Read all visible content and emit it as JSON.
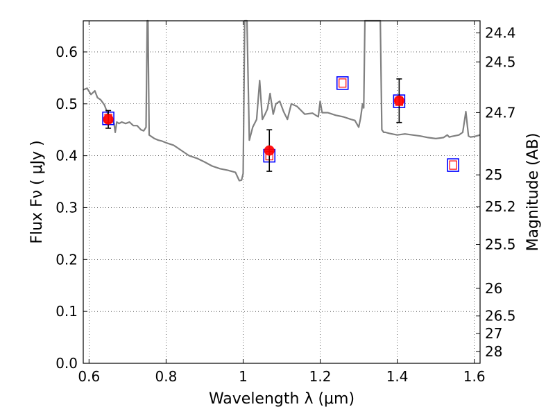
{
  "chart_data": {
    "type": "scatter",
    "xlabel": "Wavelength  λ (μm)",
    "ylabel": "Flux  Fν  ( μJy )",
    "ylabel_right": "Magnitude (AB)",
    "xlim": [
      0.585,
      1.615
    ],
    "ylim": [
      0.0,
      0.66
    ],
    "grid": true,
    "x_ticks": [
      {
        "value": 0.6,
        "label": "0.6"
      },
      {
        "value": 0.8,
        "label": "0.8"
      },
      {
        "value": 1.0,
        "label": "1"
      },
      {
        "value": 1.2,
        "label": "1.2"
      },
      {
        "value": 1.4,
        "label": "1.4"
      },
      {
        "value": 1.6,
        "label": "1.6"
      }
    ],
    "y_ticks": [
      {
        "value": 0.0,
        "label": "0.0"
      },
      {
        "value": 0.1,
        "label": "0.1"
      },
      {
        "value": 0.2,
        "label": "0.2"
      },
      {
        "value": 0.3,
        "label": "0.3"
      },
      {
        "value": 0.4,
        "label": "0.4"
      },
      {
        "value": 0.5,
        "label": "0.5"
      },
      {
        "value": 0.6,
        "label": "0.6"
      }
    ],
    "right_ticks": [
      {
        "flux": 0.6368,
        "label": "24.4"
      },
      {
        "flux": 0.5808,
        "label": "24.5"
      },
      {
        "flux": 0.4831,
        "label": "24.7"
      },
      {
        "flux": 0.3631,
        "label": "25"
      },
      {
        "flux": 0.3018,
        "label": "25.2"
      },
      {
        "flux": 0.2291,
        "label": "25.5"
      },
      {
        "flux": 0.1445,
        "label": "26"
      },
      {
        "flux": 0.0912,
        "label": "26.5"
      },
      {
        "flux": 0.0575,
        "label": "27"
      },
      {
        "flux": 0.0229,
        "label": "28"
      }
    ],
    "series": [
      {
        "kind": "line",
        "color": "#808080",
        "x": [
          0.585,
          0.595,
          0.605,
          0.615,
          0.622,
          0.63,
          0.64,
          0.65,
          0.66,
          0.665,
          0.668,
          0.672,
          0.678,
          0.685,
          0.695,
          0.705,
          0.715,
          0.725,
          0.735,
          0.742,
          0.748,
          0.751,
          0.753,
          0.756,
          0.76,
          0.77,
          0.78,
          0.79,
          0.8,
          0.82,
          0.84,
          0.86,
          0.88,
          0.9,
          0.92,
          0.94,
          0.96,
          0.97,
          0.98,
          0.985,
          0.99,
          0.996,
          1.0,
          1.004,
          1.01,
          1.016,
          1.025,
          1.035,
          1.043,
          1.05,
          1.057,
          1.063,
          1.07,
          1.078,
          1.085,
          1.095,
          1.105,
          1.115,
          1.125,
          1.14,
          1.16,
          1.18,
          1.195,
          1.2,
          1.205,
          1.22,
          1.24,
          1.26,
          1.28,
          1.29,
          1.3,
          1.305,
          1.31,
          1.313,
          1.316,
          1.32,
          1.34,
          1.356,
          1.36,
          1.365,
          1.37,
          1.38,
          1.4,
          1.42,
          1.44,
          1.46,
          1.48,
          1.5,
          1.52,
          1.53,
          1.535,
          1.54,
          1.56,
          1.57,
          1.578,
          1.585,
          1.59,
          1.6,
          1.615
        ],
        "values": [
          0.527,
          0.53,
          0.518,
          0.525,
          0.512,
          0.508,
          0.498,
          0.478,
          0.468,
          0.462,
          0.445,
          0.465,
          0.462,
          0.465,
          0.462,
          0.465,
          0.458,
          0.458,
          0.45,
          0.448,
          0.455,
          0.66,
          0.66,
          0.44,
          0.438,
          0.433,
          0.43,
          0.428,
          0.425,
          0.42,
          0.41,
          0.4,
          0.395,
          0.388,
          0.38,
          0.375,
          0.372,
          0.37,
          0.368,
          0.36,
          0.352,
          0.353,
          0.366,
          0.66,
          0.66,
          0.43,
          0.455,
          0.47,
          0.545,
          0.47,
          0.48,
          0.49,
          0.52,
          0.48,
          0.5,
          0.505,
          0.485,
          0.47,
          0.5,
          0.495,
          0.48,
          0.482,
          0.475,
          0.505,
          0.483,
          0.483,
          0.478,
          0.475,
          0.47,
          0.468,
          0.455,
          0.473,
          0.5,
          0.492,
          0.66,
          0.66,
          0.66,
          0.66,
          0.45,
          0.445,
          0.445,
          0.443,
          0.44,
          0.442,
          0.44,
          0.438,
          0.435,
          0.433,
          0.435,
          0.44,
          0.436,
          0.437,
          0.44,
          0.445,
          0.485,
          0.438,
          0.436,
          0.437,
          0.44
        ]
      },
      {
        "kind": "model_squares",
        "x": [
          0.65,
          1.068,
          1.258,
          1.405,
          1.545
        ],
        "values": [
          0.472,
          0.4,
          0.54,
          0.505,
          0.382
        ],
        "edgecolor": "#0000ff",
        "inner_edgecolor": "#ff0000"
      },
      {
        "kind": "observed",
        "color": "#ff0000",
        "x": [
          0.65,
          1.068,
          1.405
        ],
        "values": [
          0.47,
          0.41,
          0.506
        ],
        "yerr": [
          0.017,
          0.04,
          0.042
        ]
      }
    ]
  }
}
